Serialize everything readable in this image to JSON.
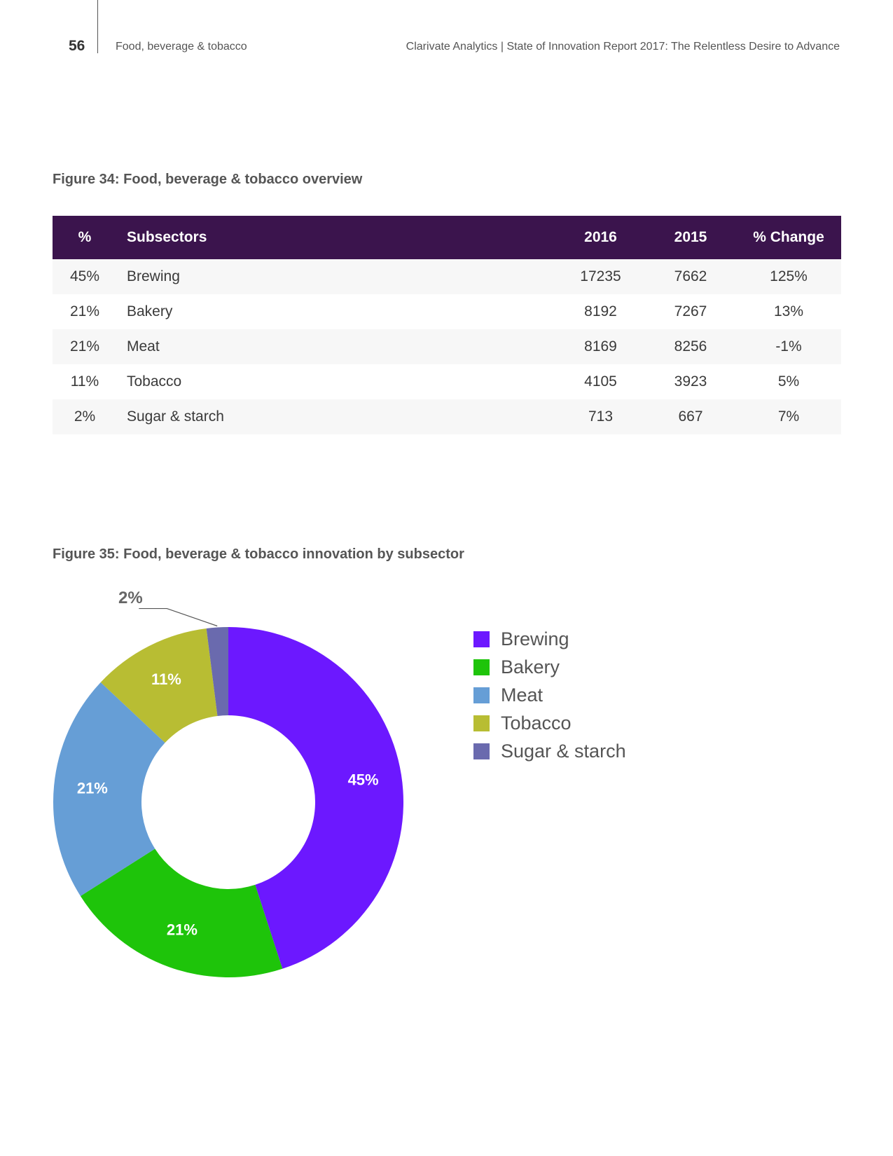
{
  "header": {
    "page_number": "56",
    "section": "Food, beverage & tobacco",
    "report_title": "Clarivate Analytics | State of Innovation Report 2017: The Relentless Desire to Advance"
  },
  "figure34": {
    "title": "Figure 34: Food, beverage & tobacco overview",
    "columns": [
      "%",
      "Subsectors",
      "2016",
      "2015",
      "% Change"
    ],
    "rows": [
      [
        "45%",
        "Brewing",
        "17235",
        "7662",
        "125%"
      ],
      [
        "21%",
        "Bakery",
        "8192",
        "7267",
        "13%"
      ],
      [
        "21%",
        "Meat",
        "8169",
        "8256",
        "-1%"
      ],
      [
        "11%",
        "Tobacco",
        "4105",
        "3923",
        "5%"
      ],
      [
        "2%",
        "Sugar & starch",
        "713",
        "667",
        "7%"
      ]
    ]
  },
  "figure35": {
    "title": "Figure 35: Food, beverage & tobacco innovation by subsector"
  },
  "chart_data": {
    "type": "pie",
    "donut": true,
    "categories": [
      "Brewing",
      "Bakery",
      "Meat",
      "Tobacco",
      "Sugar & starch"
    ],
    "values": [
      45,
      21,
      21,
      11,
      2
    ],
    "labels": [
      "45%",
      "21%",
      "21%",
      "11%",
      "2%"
    ],
    "colors": [
      "#6c18ff",
      "#1ec40a",
      "#669ed6",
      "#b8bd33",
      "#6a6aae"
    ],
    "legend_position": "right"
  }
}
